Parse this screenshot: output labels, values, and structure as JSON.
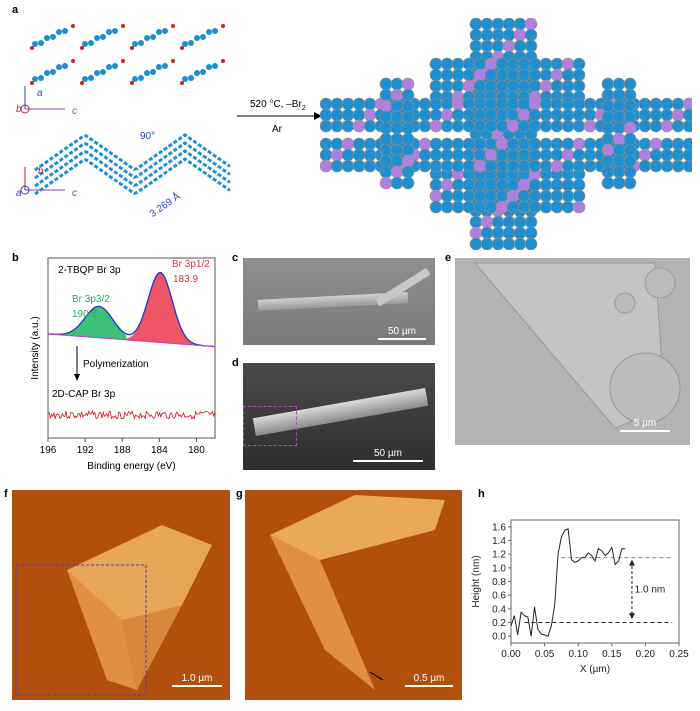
{
  "panels": {
    "a": {
      "label": "a",
      "reaction_top": "520 °C, –Br",
      "reaction_sub": "2",
      "reaction_bottom": "Ar",
      "axes_top": [
        "a",
        "b",
        "c"
      ],
      "axes_bottom": [
        "b",
        "a",
        "c"
      ],
      "angle": "90°",
      "distance": "3.269 Å"
    },
    "b": {
      "label": "b"
    },
    "c": {
      "label": "c",
      "scalebar": "50 µm"
    },
    "d": {
      "label": "d",
      "scalebar": "50 µm"
    },
    "e": {
      "label": "e",
      "scalebar": "5 µm"
    },
    "f": {
      "label": "f",
      "scalebar": "1.0 µm"
    },
    "g": {
      "label": "g",
      "scalebar": "0.5 µm"
    },
    "h": {
      "label": "h"
    }
  },
  "colors": {
    "carbon": "#1f8fd0",
    "bromine": "#d02020",
    "iodine_like": "#b080e0",
    "green_peak": "#3cc07a",
    "red_peak": "#ee5566",
    "fit": "#2233cc",
    "afm": "#b8540e"
  },
  "chart_data": [
    {
      "panel": "b",
      "type": "line",
      "xlabel": "Binding energy (eV)",
      "ylabel": "Intensity (a.u.)",
      "xlim": [
        196,
        178
      ],
      "xticks": [
        196,
        192,
        188,
        184,
        180
      ],
      "yticks": [],
      "top_label": "2-TBQP  Br 3p",
      "bottom_label": "2D-CAP  Br 3p",
      "arrow_label": "Polymerization",
      "peaks": [
        {
          "label": "Br 3p3/2",
          "position": 190.5,
          "position_label": "190.5",
          "height": 0.45,
          "width": 1.5,
          "color": "#3cc07a"
        },
        {
          "label": "Br 3p1/2",
          "position": 183.9,
          "position_label": "183.9",
          "height": 1.0,
          "width": 1.3,
          "color": "#ee5566"
        }
      ]
    },
    {
      "panel": "h",
      "type": "line",
      "xlabel": "X (µm)",
      "ylabel": "Height (nm)",
      "xlim": [
        0,
        0.25
      ],
      "ylim": [
        -0.1,
        1.7
      ],
      "xticks": [
        "0.00",
        "0.05",
        "0.10",
        "0.15",
        "0.20",
        "0.25"
      ],
      "yticks": [
        "0.0",
        "0.2",
        "0.4",
        "0.6",
        "0.8",
        "1.0",
        "1.2",
        "1.4",
        "1.6"
      ],
      "x": [
        0,
        0.005,
        0.01,
        0.015,
        0.02,
        0.025,
        0.03,
        0.035,
        0.04,
        0.045,
        0.05,
        0.055,
        0.06,
        0.065,
        0.07,
        0.075,
        0.08,
        0.085,
        0.09,
        0.095,
        0.1,
        0.105,
        0.11,
        0.115,
        0.12,
        0.125,
        0.13,
        0.135,
        0.14,
        0.145,
        0.15,
        0.155,
        0.16,
        0.165,
        0.17
      ],
      "y": [
        0.15,
        0.3,
        0.02,
        0.35,
        0.3,
        0.28,
        0.0,
        0.43,
        0.1,
        0.03,
        0.02,
        0.0,
        0.15,
        0.45,
        1.2,
        1.45,
        1.55,
        1.57,
        1.12,
        1.08,
        1.1,
        1.15,
        1.15,
        1.22,
        1.18,
        1.1,
        1.28,
        1.25,
        1.18,
        1.22,
        1.3,
        1.05,
        1.1,
        1.28,
        1.28
      ],
      "reference_lines": [
        1.15,
        0.2
      ],
      "annotation": "1.0 nm"
    }
  ]
}
